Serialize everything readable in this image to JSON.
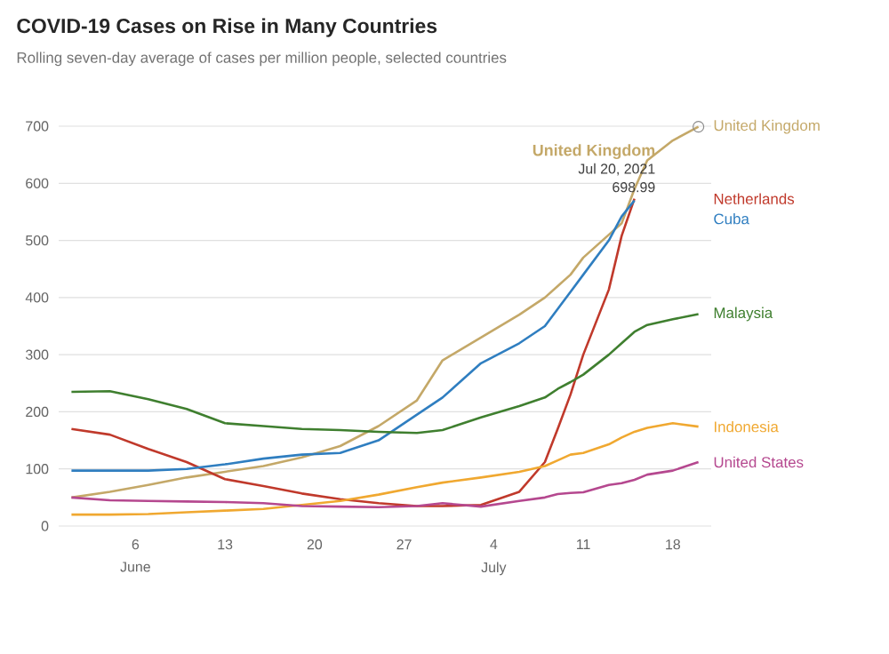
{
  "chart_data": {
    "type": "line",
    "title": "COVID-19 Cases on Rise in Many Countries",
    "subtitle": "Rolling seven-day average of cases per million people, selected countries",
    "x": [
      "2021-06-01",
      "2021-06-04",
      "2021-06-07",
      "2021-06-10",
      "2021-06-13",
      "2021-06-16",
      "2021-06-19",
      "2021-06-22",
      "2021-06-25",
      "2021-06-28",
      "2021-06-30",
      "2021-07-03",
      "2021-07-06",
      "2021-07-08",
      "2021-07-09",
      "2021-07-10",
      "2021-07-11",
      "2021-07-13",
      "2021-07-14",
      "2021-07-15",
      "2021-07-16",
      "2021-07-18",
      "2021-07-20"
    ],
    "series": [
      {
        "name": "United Kingdom",
        "color": "#c4a868",
        "values": [
          50,
          60,
          72,
          85,
          95,
          105,
          120,
          140,
          175,
          220,
          290,
          330,
          370,
          400,
          420,
          440,
          470,
          510,
          530,
          590,
          640,
          675,
          698.99
        ]
      },
      {
        "name": "Netherlands",
        "color": "#c0392b",
        "values": [
          170,
          160,
          135,
          112,
          82,
          70,
          57,
          47,
          40,
          35,
          35,
          37,
          60,
          112,
          170,
          230,
          300,
          414,
          508,
          573,
          null,
          null,
          null
        ]
      },
      {
        "name": "Cuba",
        "color": "#2f7ec0",
        "values": [
          97,
          97,
          97,
          100,
          108,
          118,
          125,
          128,
          150,
          195,
          225,
          285,
          320,
          350,
          380,
          410,
          440,
          500,
          542,
          570,
          null,
          null,
          null
        ]
      },
      {
        "name": "Malaysia",
        "color": "#3f7f2f",
        "values": [
          235,
          236,
          222,
          205,
          180,
          175,
          170,
          168,
          165,
          163,
          168,
          190,
          210,
          225,
          240,
          252,
          265,
          300,
          320,
          340,
          352,
          362,
          371
        ]
      },
      {
        "name": "Indonesia",
        "color": "#f0a830",
        "values": [
          20,
          20,
          21,
          24,
          27,
          30,
          37,
          44,
          55,
          68,
          76,
          85,
          95,
          105,
          115,
          125,
          128,
          143,
          155,
          165,
          172,
          180,
          174
        ]
      },
      {
        "name": "United States",
        "color": "#b5488f",
        "values": [
          50,
          45,
          44,
          43,
          42,
          40,
          35,
          34,
          33,
          35,
          40,
          34,
          44,
          50,
          56,
          58,
          59,
          72,
          75,
          81,
          90,
          97,
          112
        ]
      }
    ],
    "xlim": [
      "2021-05-31",
      "2021-07-21"
    ],
    "xticks": [
      {
        "value": "2021-06-06",
        "label": "6"
      },
      {
        "value": "2021-06-13",
        "label": "13"
      },
      {
        "value": "2021-06-20",
        "label": "20"
      },
      {
        "value": "2021-06-27",
        "label": "27"
      },
      {
        "value": "2021-07-04",
        "label": "4"
      },
      {
        "value": "2021-07-11",
        "label": "11"
      },
      {
        "value": "2021-07-18",
        "label": "18"
      }
    ],
    "ylim": [
      0,
      700
    ],
    "yticks": [
      0,
      100,
      200,
      300,
      400,
      500,
      600,
      700
    ],
    "grid": "y",
    "annotations": [
      "June",
      "July",
      "**United Kingdom**",
      "Jul 20, 2021",
      "698.99"
    ]
  }
}
